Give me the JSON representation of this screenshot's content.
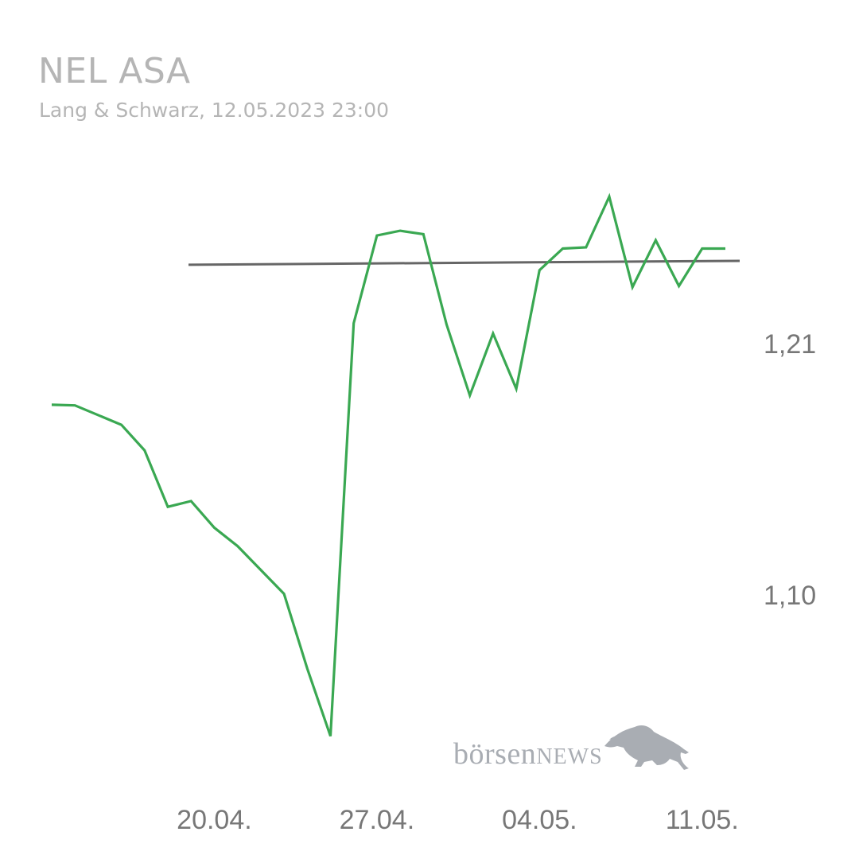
{
  "title": "NEL ASA",
  "subtitle": "Lang & Schwarz, 12.05.2023 23:00",
  "logo": {
    "text_lower": "börsen",
    "text_caps": "NEWS",
    "icon": "bull-icon"
  },
  "colors": {
    "line": "#3aa852",
    "reference": "#666666",
    "text": "#b5b5b5",
    "ticks": "#777777"
  },
  "chart_data": {
    "type": "line",
    "y_ticks": [
      {
        "value": 1.21,
        "label": "1,21"
      },
      {
        "value": 1.1,
        "label": "1,10"
      }
    ],
    "x_ticks": [
      {
        "x": 7,
        "label": "20.04."
      },
      {
        "x": 14,
        "label": "27.04."
      },
      {
        "x": 21,
        "label": "04.05."
      },
      {
        "x": 28,
        "label": "11.05."
      }
    ],
    "xlim": [
      0,
      29
    ],
    "ylim": [
      1.045,
      1.325
    ],
    "series": [
      {
        "x": [
          0,
          1,
          3,
          4,
          5,
          6,
          7,
          8,
          10,
          11,
          12,
          13,
          14,
          15,
          16,
          17,
          18,
          19,
          20,
          21,
          22,
          23,
          24,
          25,
          26,
          27,
          28,
          29
        ],
        "values": [
          1.184,
          1.1837,
          1.1752,
          1.164,
          1.1393,
          1.1418,
          1.1302,
          1.1221,
          1.1012,
          1.0685,
          1.0389,
          1.2197,
          1.2581,
          1.2602,
          1.2587,
          1.2191,
          1.1881,
          1.2152,
          1.191,
          1.2429,
          1.2524,
          1.2529,
          1.2751,
          1.2355,
          1.256,
          1.236,
          1.2524,
          1.2524
        ]
      }
    ],
    "reference_line": {
      "x": [
        -1,
        29.7
      ],
      "values": [
        1.2453,
        1.247
      ]
    }
  }
}
